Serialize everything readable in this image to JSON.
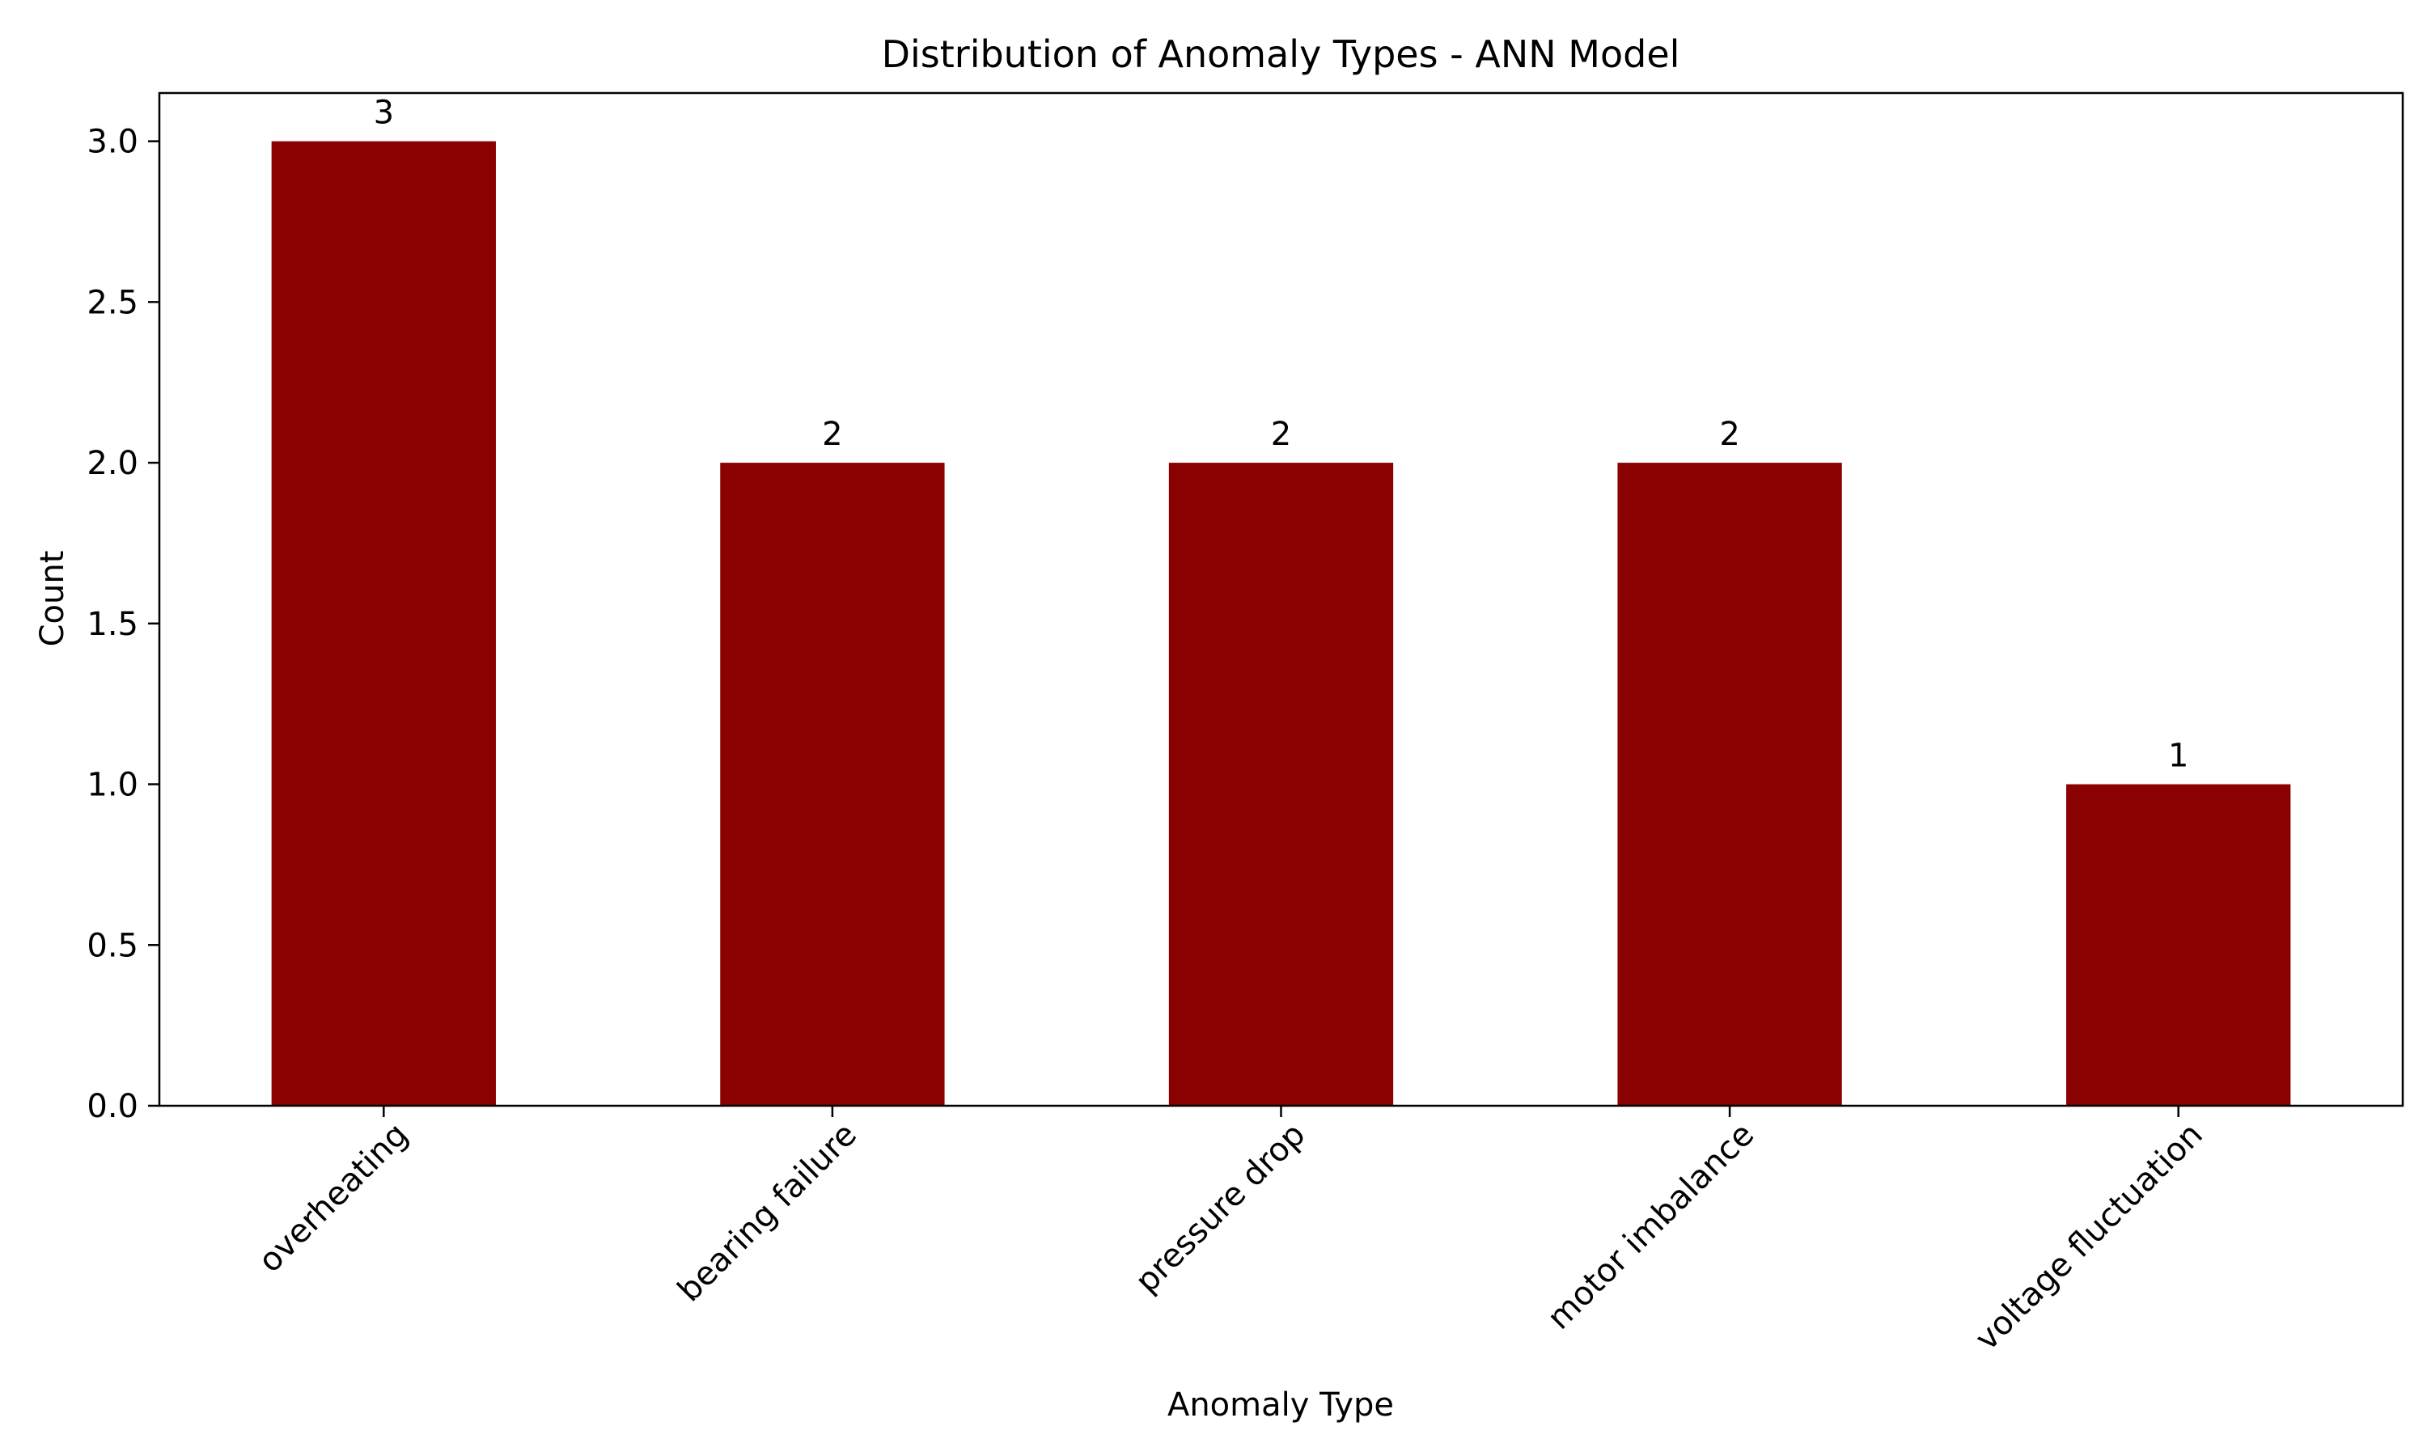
{
  "chart_data": {
    "type": "bar",
    "title": "Distribution of Anomaly Types - ANN Model",
    "xlabel": "Anomaly Type",
    "ylabel": "Count",
    "categories": [
      "overheating",
      "bearing failure",
      "pressure drop",
      "motor imbalance",
      "voltage fluctuation"
    ],
    "values": [
      3,
      2,
      2,
      2,
      1
    ],
    "data_labels": [
      "3",
      "2",
      "2",
      "2",
      "1"
    ],
    "ylim": [
      0,
      3.15
    ],
    "yticks": [
      0.0,
      0.5,
      1.0,
      1.5,
      2.0,
      2.5,
      3.0
    ],
    "ytick_labels": [
      "0.0",
      "0.5",
      "1.0",
      "1.5",
      "2.0",
      "2.5",
      "3.0"
    ],
    "bar_color": "#8b0000",
    "grid": false,
    "legend": false
  }
}
